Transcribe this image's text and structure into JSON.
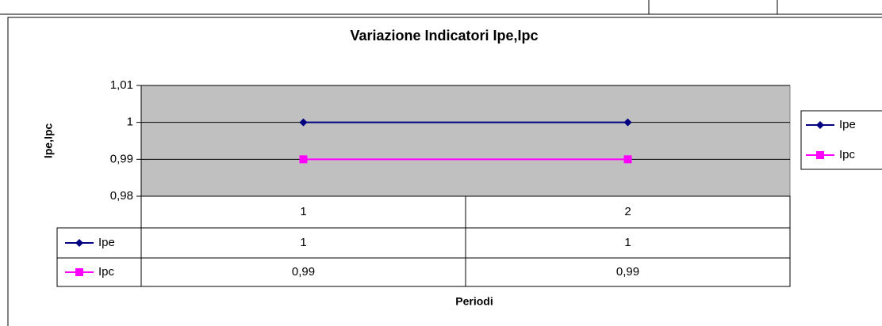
{
  "chart_data": {
    "type": "line",
    "title": "Variazione Indicatori Ipe,Ipc",
    "x_label": "Periodi",
    "y_label": "Ipe,Ipc",
    "categories": [
      "1",
      "2"
    ],
    "series": [
      {
        "name": "Ipe",
        "color": "#000080",
        "marker": "diamond",
        "values": [
          1,
          1
        ]
      },
      {
        "name": "Ipc",
        "color": "#ff00ff",
        "marker": "square",
        "values": [
          0.99,
          0.99
        ],
        "value_labels": [
          "0,99",
          "0,99"
        ]
      }
    ],
    "ylim": [
      0.98,
      1.01
    ],
    "yticks": [
      {
        "value": 0.98,
        "label": "0,98"
      },
      {
        "value": 0.99,
        "label": "0,99"
      },
      1,
      {
        "value": 1.01,
        "label": "1,01"
      }
    ],
    "grid": true,
    "legend": "right",
    "plot_background": "#c0c0c0"
  }
}
